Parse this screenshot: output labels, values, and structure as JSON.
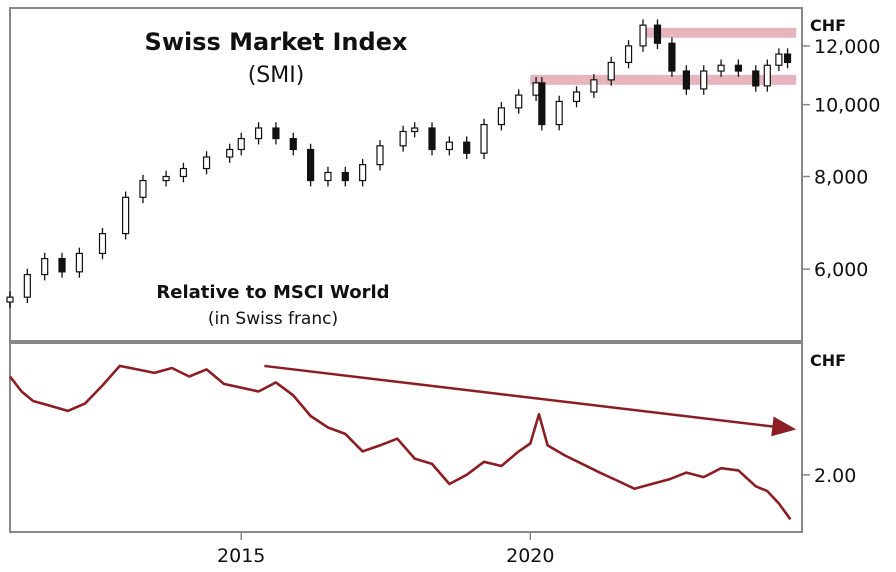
{
  "chart_data": [
    {
      "type": "candlestick",
      "title": "Swiss Market Index",
      "subtitle": "(SMI)",
      "unit": "CHF",
      "y_scale": "log",
      "ylim": [
        4800,
        13500
      ],
      "xlim": [
        2011.0,
        2024.7
      ],
      "y_ticks": [
        {
          "value": 12000,
          "label": "12,000"
        },
        {
          "value": 10000,
          "label": "10,000"
        },
        {
          "value": 8000,
          "label": "8,000"
        },
        {
          "value": 6000,
          "label": "6,000"
        }
      ],
      "series": [
        {
          "values": [
            {
              "x": 2011.0,
              "y": 5500
            },
            {
              "x": 2011.3,
              "y": 5900
            },
            {
              "x": 2011.6,
              "y": 6200
            },
            {
              "x": 2011.9,
              "y": 5950
            },
            {
              "x": 2012.2,
              "y": 6300
            },
            {
              "x": 2012.6,
              "y": 6700
            },
            {
              "x": 2013.0,
              "y": 7500
            },
            {
              "x": 2013.3,
              "y": 7900
            },
            {
              "x": 2013.7,
              "y": 8000
            },
            {
              "x": 2014.0,
              "y": 8200
            },
            {
              "x": 2014.4,
              "y": 8500
            },
            {
              "x": 2014.8,
              "y": 8700
            },
            {
              "x": 2015.0,
              "y": 9000
            },
            {
              "x": 2015.3,
              "y": 9300
            },
            {
              "x": 2015.6,
              "y": 9000
            },
            {
              "x": 2015.9,
              "y": 8700
            },
            {
              "x": 2016.2,
              "y": 7900
            },
            {
              "x": 2016.5,
              "y": 8100
            },
            {
              "x": 2016.8,
              "y": 7900
            },
            {
              "x": 2017.1,
              "y": 8300
            },
            {
              "x": 2017.4,
              "y": 8800
            },
            {
              "x": 2017.8,
              "y": 9200
            },
            {
              "x": 2018.0,
              "y": 9300
            },
            {
              "x": 2018.3,
              "y": 8700
            },
            {
              "x": 2018.6,
              "y": 8900
            },
            {
              "x": 2018.9,
              "y": 8600
            },
            {
              "x": 2019.2,
              "y": 9400
            },
            {
              "x": 2019.5,
              "y": 9900
            },
            {
              "x": 2019.8,
              "y": 10300
            },
            {
              "x": 2020.1,
              "y": 10700
            },
            {
              "x": 2020.2,
              "y": 9400
            },
            {
              "x": 2020.5,
              "y": 10100
            },
            {
              "x": 2020.8,
              "y": 10400
            },
            {
              "x": 2021.1,
              "y": 10800
            },
            {
              "x": 2021.4,
              "y": 11400
            },
            {
              "x": 2021.7,
              "y": 12000
            },
            {
              "x": 2021.95,
              "y": 12800
            },
            {
              "x": 2022.2,
              "y": 12100
            },
            {
              "x": 2022.45,
              "y": 11100
            },
            {
              "x": 2022.7,
              "y": 10500
            },
            {
              "x": 2023.0,
              "y": 11100
            },
            {
              "x": 2023.3,
              "y": 11300
            },
            {
              "x": 2023.6,
              "y": 11100
            },
            {
              "x": 2023.9,
              "y": 10600
            },
            {
              "x": 2024.1,
              "y": 11300
            },
            {
              "x": 2024.3,
              "y": 11700
            },
            {
              "x": 2024.45,
              "y": 11400
            }
          ]
        }
      ],
      "resistance_bands": [
        {
          "x_from": 2020.0,
          "x_to": 2024.6,
          "y": 10800
        },
        {
          "x_from": 2021.9,
          "x_to": 2024.6,
          "y": 12500
        }
      ],
      "resistance_color": "#e7b5bd",
      "candle_color": "#111111"
    },
    {
      "type": "line",
      "title": "Relative to MSCI World",
      "subtitle": "(in Swiss franc)",
      "unit": "CHF",
      "y_scale": "log",
      "ylim": [
        1.55,
        3.6
      ],
      "xlim": [
        2011.0,
        2024.7
      ],
      "y_ticks": [
        {
          "value": 2.0,
          "label": "2.00"
        }
      ],
      "x_ticks": [
        {
          "value": 2015,
          "label": "2015"
        },
        {
          "value": 2020,
          "label": "2020"
        }
      ],
      "series": [
        {
          "color": "#8b1e24",
          "values": [
            {
              "x": 2011.0,
              "y": 3.1
            },
            {
              "x": 2011.2,
              "y": 2.9
            },
            {
              "x": 2011.4,
              "y": 2.78
            },
            {
              "x": 2011.7,
              "y": 2.72
            },
            {
              "x": 2012.0,
              "y": 2.66
            },
            {
              "x": 2012.3,
              "y": 2.75
            },
            {
              "x": 2012.6,
              "y": 2.98
            },
            {
              "x": 2012.9,
              "y": 3.25
            },
            {
              "x": 2013.2,
              "y": 3.2
            },
            {
              "x": 2013.5,
              "y": 3.15
            },
            {
              "x": 2013.8,
              "y": 3.22
            },
            {
              "x": 2014.1,
              "y": 3.1
            },
            {
              "x": 2014.4,
              "y": 3.2
            },
            {
              "x": 2014.7,
              "y": 3.0
            },
            {
              "x": 2015.0,
              "y": 2.95
            },
            {
              "x": 2015.3,
              "y": 2.9
            },
            {
              "x": 2015.6,
              "y": 3.02
            },
            {
              "x": 2015.9,
              "y": 2.85
            },
            {
              "x": 2016.2,
              "y": 2.6
            },
            {
              "x": 2016.5,
              "y": 2.47
            },
            {
              "x": 2016.8,
              "y": 2.4
            },
            {
              "x": 2017.1,
              "y": 2.22
            },
            {
              "x": 2017.4,
              "y": 2.28
            },
            {
              "x": 2017.7,
              "y": 2.35
            },
            {
              "x": 2018.0,
              "y": 2.15
            },
            {
              "x": 2018.3,
              "y": 2.1
            },
            {
              "x": 2018.6,
              "y": 1.92
            },
            {
              "x": 2018.9,
              "y": 2.0
            },
            {
              "x": 2019.2,
              "y": 2.12
            },
            {
              "x": 2019.5,
              "y": 2.08
            },
            {
              "x": 2019.8,
              "y": 2.22
            },
            {
              "x": 2020.0,
              "y": 2.3
            },
            {
              "x": 2020.15,
              "y": 2.62
            },
            {
              "x": 2020.3,
              "y": 2.28
            },
            {
              "x": 2020.6,
              "y": 2.18
            },
            {
              "x": 2020.9,
              "y": 2.1
            },
            {
              "x": 2021.2,
              "y": 2.02
            },
            {
              "x": 2021.5,
              "y": 1.95
            },
            {
              "x": 2021.8,
              "y": 1.88
            },
            {
              "x": 2022.1,
              "y": 1.92
            },
            {
              "x": 2022.4,
              "y": 1.96
            },
            {
              "x": 2022.7,
              "y": 2.02
            },
            {
              "x": 2023.0,
              "y": 1.98
            },
            {
              "x": 2023.3,
              "y": 2.06
            },
            {
              "x": 2023.6,
              "y": 2.04
            },
            {
              "x": 2023.9,
              "y": 1.9
            },
            {
              "x": 2024.1,
              "y": 1.86
            },
            {
              "x": 2024.3,
              "y": 1.76
            },
            {
              "x": 2024.5,
              "y": 1.64
            }
          ]
        }
      ],
      "trend_arrow": {
        "x_from": 2015.4,
        "y_from": 3.25,
        "x_to": 2024.6,
        "y_to": 2.45
      },
      "arrow_color": "#8b1e24"
    }
  ]
}
